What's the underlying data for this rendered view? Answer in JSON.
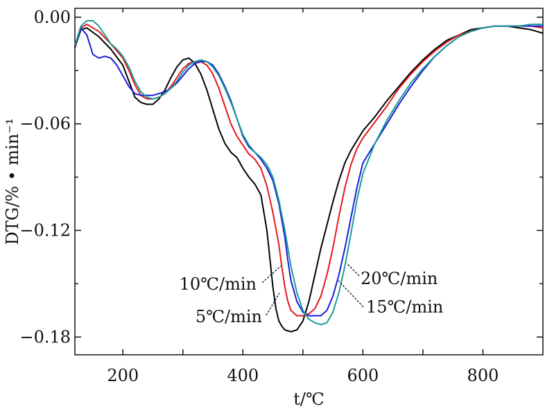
{
  "chart_data": {
    "type": "line",
    "title": "",
    "xlabel": "t/℃",
    "ylabel": "DTG/% • min⁻¹",
    "xlim": [
      120,
      900
    ],
    "ylim": [
      -0.19,
      0.005
    ],
    "x_ticks": [
      200,
      400,
      600,
      800
    ],
    "x_tick_labels": [
      "200",
      "400",
      "600",
      "800"
    ],
    "y_ticks": [
      0.0,
      -0.06,
      -0.12,
      -0.18
    ],
    "y_tick_labels": [
      "0.00",
      "−0.06",
      "−0.12",
      "−0.18"
    ],
    "grid": false,
    "legend": "none",
    "series": [
      {
        "name": "5℃/min",
        "color": "#000000",
        "x": [
          120,
          130,
          140,
          160,
          180,
          200,
          210,
          220,
          230,
          240,
          250,
          260,
          270,
          280,
          290,
          300,
          310,
          320,
          330,
          340,
          350,
          360,
          370,
          380,
          390,
          400,
          410,
          420,
          430,
          440,
          445,
          450,
          455,
          460,
          465,
          470,
          480,
          490,
          500,
          510,
          520,
          530,
          540,
          550,
          560,
          570,
          580,
          600,
          620,
          640,
          660,
          680,
          700,
          720,
          740,
          760,
          780,
          800,
          820,
          840,
          860,
          880,
          900
        ],
        "y": [
          -0.017,
          -0.007,
          -0.006,
          -0.011,
          -0.018,
          -0.027,
          -0.036,
          -0.045,
          -0.048,
          -0.049,
          -0.049,
          -0.046,
          -0.041,
          -0.034,
          -0.028,
          -0.024,
          -0.023,
          -0.026,
          -0.032,
          -0.041,
          -0.052,
          -0.063,
          -0.071,
          -0.076,
          -0.079,
          -0.085,
          -0.09,
          -0.094,
          -0.1,
          -0.12,
          -0.136,
          -0.152,
          -0.164,
          -0.171,
          -0.174,
          -0.176,
          -0.177,
          -0.176,
          -0.171,
          -0.16,
          -0.145,
          -0.13,
          -0.117,
          -0.104,
          -0.092,
          -0.082,
          -0.075,
          -0.064,
          -0.056,
          -0.047,
          -0.039,
          -0.031,
          -0.024,
          -0.018,
          -0.013,
          -0.01,
          -0.007,
          -0.006,
          -0.005,
          -0.005,
          -0.006,
          -0.007,
          -0.009
        ]
      },
      {
        "name": "10℃/min",
        "color": "#e8141b",
        "x": [
          120,
          130,
          140,
          160,
          180,
          200,
          210,
          220,
          230,
          240,
          250,
          260,
          270,
          280,
          290,
          300,
          310,
          320,
          330,
          340,
          350,
          360,
          370,
          380,
          390,
          400,
          410,
          420,
          430,
          440,
          450,
          460,
          465,
          470,
          475,
          480,
          490,
          500,
          510,
          520,
          530,
          540,
          550,
          560,
          570,
          580,
          590,
          600,
          620,
          640,
          660,
          680,
          700,
          720,
          740,
          760,
          780,
          800,
          820,
          840,
          860,
          880,
          900
        ],
        "y": [
          -0.016,
          -0.006,
          -0.004,
          -0.008,
          -0.015,
          -0.023,
          -0.03,
          -0.038,
          -0.044,
          -0.046,
          -0.046,
          -0.045,
          -0.043,
          -0.039,
          -0.034,
          -0.029,
          -0.026,
          -0.025,
          -0.025,
          -0.027,
          -0.032,
          -0.04,
          -0.05,
          -0.06,
          -0.067,
          -0.072,
          -0.077,
          -0.08,
          -0.085,
          -0.095,
          -0.11,
          -0.128,
          -0.141,
          -0.152,
          -0.16,
          -0.165,
          -0.168,
          -0.168,
          -0.167,
          -0.164,
          -0.157,
          -0.145,
          -0.13,
          -0.112,
          -0.096,
          -0.083,
          -0.074,
          -0.068,
          -0.059,
          -0.05,
          -0.04,
          -0.032,
          -0.025,
          -0.019,
          -0.014,
          -0.01,
          -0.008,
          -0.006,
          -0.005,
          -0.005,
          -0.005,
          -0.005,
          -0.006
        ]
      },
      {
        "name": "15℃/min",
        "color": "#1a1adc",
        "x": [
          120,
          130,
          140,
          150,
          160,
          170,
          180,
          190,
          200,
          210,
          220,
          230,
          240,
          250,
          260,
          270,
          280,
          290,
          300,
          310,
          320,
          330,
          340,
          350,
          360,
          370,
          380,
          390,
          400,
          410,
          420,
          430,
          440,
          450,
          460,
          470,
          475,
          480,
          490,
          500,
          510,
          520,
          530,
          540,
          550,
          560,
          570,
          580,
          590,
          600,
          620,
          640,
          660,
          680,
          700,
          720,
          740,
          760,
          780,
          800,
          820,
          840,
          860,
          880,
          900
        ],
        "y": [
          -0.016,
          -0.006,
          -0.01,
          -0.021,
          -0.023,
          -0.022,
          -0.023,
          -0.027,
          -0.033,
          -0.039,
          -0.043,
          -0.044,
          -0.044,
          -0.044,
          -0.043,
          -0.042,
          -0.04,
          -0.037,
          -0.033,
          -0.029,
          -0.026,
          -0.025,
          -0.025,
          -0.027,
          -0.032,
          -0.039,
          -0.047,
          -0.057,
          -0.067,
          -0.073,
          -0.076,
          -0.08,
          -0.085,
          -0.092,
          -0.105,
          -0.124,
          -0.137,
          -0.148,
          -0.16,
          -0.166,
          -0.168,
          -0.168,
          -0.168,
          -0.165,
          -0.157,
          -0.145,
          -0.13,
          -0.113,
          -0.096,
          -0.082,
          -0.071,
          -0.06,
          -0.049,
          -0.039,
          -0.03,
          -0.022,
          -0.016,
          -0.011,
          -0.008,
          -0.006,
          -0.005,
          -0.005,
          -0.005,
          -0.005,
          -0.005
        ]
      },
      {
        "name": "20℃/min",
        "color": "#1a9a96",
        "x": [
          120,
          130,
          140,
          150,
          160,
          170,
          180,
          190,
          200,
          210,
          220,
          230,
          240,
          250,
          260,
          270,
          280,
          290,
          300,
          310,
          320,
          330,
          340,
          350,
          360,
          370,
          380,
          390,
          400,
          410,
          420,
          430,
          440,
          450,
          460,
          470,
          480,
          490,
          500,
          510,
          520,
          530,
          540,
          550,
          560,
          570,
          580,
          590,
          600,
          620,
          640,
          660,
          680,
          700,
          720,
          740,
          760,
          780,
          800,
          820,
          840,
          860,
          880,
          900
        ],
        "y": [
          -0.016,
          -0.005,
          -0.002,
          -0.002,
          -0.005,
          -0.01,
          -0.015,
          -0.018,
          -0.022,
          -0.028,
          -0.036,
          -0.042,
          -0.045,
          -0.046,
          -0.045,
          -0.043,
          -0.04,
          -0.036,
          -0.031,
          -0.027,
          -0.025,
          -0.024,
          -0.025,
          -0.028,
          -0.033,
          -0.04,
          -0.048,
          -0.057,
          -0.066,
          -0.072,
          -0.076,
          -0.079,
          -0.083,
          -0.09,
          -0.103,
          -0.12,
          -0.14,
          -0.155,
          -0.165,
          -0.17,
          -0.172,
          -0.173,
          -0.172,
          -0.166,
          -0.155,
          -0.14,
          -0.122,
          -0.103,
          -0.088,
          -0.071,
          -0.058,
          -0.047,
          -0.037,
          -0.029,
          -0.022,
          -0.016,
          -0.011,
          -0.008,
          -0.006,
          -0.005,
          -0.005,
          -0.005,
          -0.004,
          -0.004
        ]
      }
    ],
    "annotations": [
      {
        "text": "10℃/min",
        "series": "10℃/min"
      },
      {
        "text": "5℃/min",
        "series": "5℃/min"
      },
      {
        "text": "20℃/min",
        "series": "20℃/min"
      },
      {
        "text": "15℃/min",
        "series": "15℃/min"
      }
    ]
  }
}
